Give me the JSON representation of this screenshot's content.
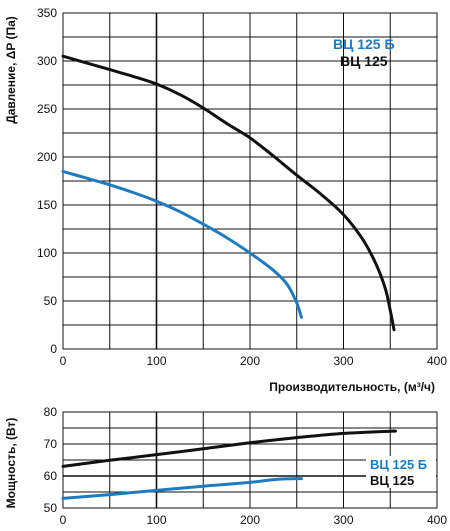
{
  "colors": {
    "series_b": "#1f7bc1",
    "series_plain": "#111111"
  },
  "chart_data": [
    {
      "type": "line",
      "title": "",
      "xlabel": "Производительность, (м³/ч)",
      "ylabel": "Давление, ΔP (Па)",
      "xlim": [
        0,
        400
      ],
      "ylim": [
        0,
        350
      ],
      "x_ticks": [
        "0",
        "100",
        "200",
        "300",
        "400"
      ],
      "y_ticks": [
        "0",
        "50",
        "100",
        "150",
        "200",
        "250",
        "300",
        "350"
      ],
      "grid": true,
      "legend_position": "top-right",
      "series": [
        {
          "name": "ВЦ 125 Б",
          "color": "#1f7bc1",
          "points": [
            [
              0,
              185
            ],
            [
              25,
              178
            ],
            [
              50,
              171
            ],
            [
              75,
              163
            ],
            [
              100,
              154
            ],
            [
              125,
              143
            ],
            [
              150,
              130
            ],
            [
              175,
              116
            ],
            [
              200,
              100
            ],
            [
              225,
              82
            ],
            [
              240,
              67
            ],
            [
              250,
              48
            ],
            [
              255,
              33
            ]
          ]
        },
        {
          "name": "ВЦ 125",
          "color": "#111111",
          "points": [
            [
              0,
              305
            ],
            [
              25,
              298
            ],
            [
              50,
              291
            ],
            [
              75,
              284
            ],
            [
              100,
              276
            ],
            [
              125,
              265
            ],
            [
              150,
              251
            ],
            [
              175,
              235
            ],
            [
              200,
              220
            ],
            [
              225,
              201
            ],
            [
              250,
              181
            ],
            [
              275,
              162
            ],
            [
              300,
              140
            ],
            [
              320,
              115
            ],
            [
              335,
              88
            ],
            [
              345,
              62
            ],
            [
              350,
              40
            ],
            [
              354,
              20
            ]
          ]
        }
      ]
    },
    {
      "type": "line",
      "title": "",
      "xlabel": "",
      "ylabel": "Мощность, (Вт)",
      "xlim": [
        0,
        400
      ],
      "ylim": [
        50,
        80
      ],
      "x_ticks": [
        "0",
        "100",
        "200",
        "300",
        "400"
      ],
      "y_ticks": [
        "50",
        "60",
        "70",
        "80"
      ],
      "grid": true,
      "legend_position": "bottom-right",
      "series": [
        {
          "name": "ВЦ 125 Б",
          "color": "#1f7bc1",
          "points": [
            [
              0,
              53
            ],
            [
              50,
              54.2
            ],
            [
              100,
              55.5
            ],
            [
              150,
              56.8
            ],
            [
              200,
              58
            ],
            [
              230,
              59
            ],
            [
              255,
              59.2
            ]
          ]
        },
        {
          "name": "ВЦ 125",
          "color": "#111111",
          "points": [
            [
              0,
              63
            ],
            [
              50,
              64.9
            ],
            [
              100,
              66.7
            ],
            [
              150,
              68.5
            ],
            [
              200,
              70.4
            ],
            [
              250,
              72
            ],
            [
              300,
              73.3
            ],
            [
              350,
              74
            ],
            [
              355,
              74
            ]
          ]
        }
      ]
    }
  ]
}
